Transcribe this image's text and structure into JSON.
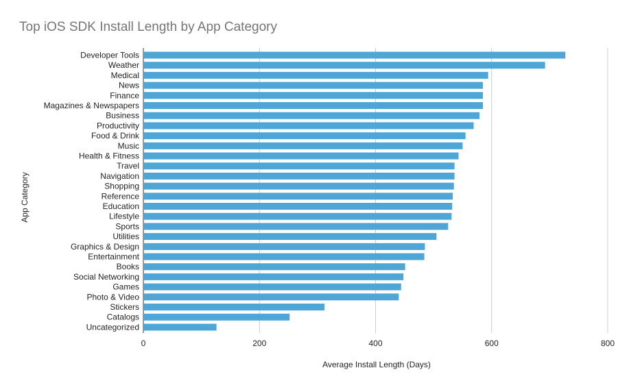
{
  "chart_data": {
    "type": "bar",
    "orientation": "horizontal",
    "title": "Top iOS SDK Install Length by App Category",
    "xlabel": "Average Install Length (Days)",
    "ylabel": "App Category",
    "xlim": [
      0,
      800
    ],
    "xticks": [
      0,
      200,
      400,
      600,
      800
    ],
    "grid": true,
    "legend": "none",
    "bar_color": "#4ea6d7",
    "categories": [
      "Developer Tools",
      "Weather",
      "Medical",
      "News",
      "Finance",
      "Magazines & Newspapers",
      "Business",
      "Productivity",
      "Food & Drink",
      "Music",
      "Health & Fitness",
      "Travel",
      "Navigation",
      "Shopping",
      "Reference",
      "Education",
      "Lifestyle",
      "Sports",
      "Utilities",
      "Graphics & Design",
      "Entertainment",
      "Books",
      "Social Networking",
      "Games",
      "Photo & Video",
      "Stickers",
      "Catalogs",
      "Uncategorized"
    ],
    "values": [
      727,
      692,
      594,
      585,
      585,
      585,
      579,
      569,
      555,
      550,
      543,
      536,
      536,
      535,
      533,
      532,
      531,
      525,
      505,
      485,
      484,
      451,
      448,
      444,
      440,
      312,
      252,
      126
    ]
  }
}
